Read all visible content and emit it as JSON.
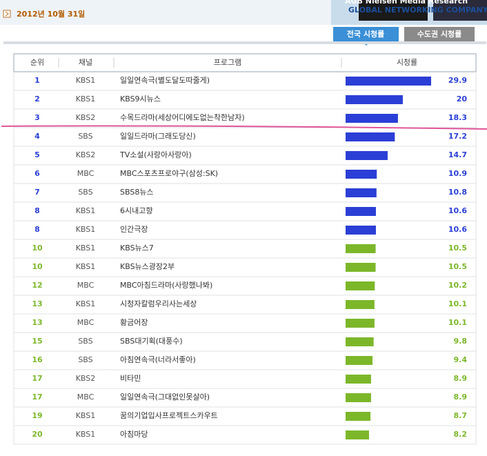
{
  "header": {
    "date": "2012년 10월 31일",
    "brand": "AGB Nielsen Media Research",
    "slogan": "GLOBAL NETWORKING COMPANY"
  },
  "tabs": [
    "전국 시청률",
    "수도권 시청률"
  ],
  "table": {
    "columns": [
      "순위",
      "채널",
      "프로그램",
      "시청률"
    ],
    "rows": [
      {
        "rank": 1,
        "channel": "KBS1",
        "program": "일일연속극(별도달도따줄게)",
        "rating": 29.9,
        "color": "#2b3fd6"
      },
      {
        "rank": 2,
        "channel": "KBS1",
        "program": "KBS9시뉴스",
        "rating": 20,
        "color": "#2b3fd6"
      },
      {
        "rank": 3,
        "channel": "KBS2",
        "program": "수목드라마(세상어디에도없는착한남자)",
        "rating": 18.3,
        "color": "#2b3fd6"
      },
      {
        "rank": 4,
        "channel": "SBS",
        "program": "일일드라마(그래도당신)",
        "rating": 17.2,
        "color": "#2b3fd6"
      },
      {
        "rank": 5,
        "channel": "KBS2",
        "program": "TV소설(사랑아사랑아)",
        "rating": 14.7,
        "color": "#2b3fd6"
      },
      {
        "rank": 6,
        "channel": "MBC",
        "program": "MBC스포츠프로야구(삼성:SK)",
        "rating": 10.9,
        "color": "#2b3fd6"
      },
      {
        "rank": 7,
        "channel": "SBS",
        "program": "SBS8뉴스",
        "rating": 10.8,
        "color": "#2b3fd6"
      },
      {
        "rank": 8,
        "channel": "KBS1",
        "program": "6시내고향",
        "rating": 10.6,
        "color": "#2b3fd6"
      },
      {
        "rank": 8,
        "channel": "KBS1",
        "program": "인간극장",
        "rating": 10.6,
        "color": "#2b3fd6"
      },
      {
        "rank": 10,
        "channel": "KBS1",
        "program": "KBS뉴스7",
        "rating": 10.5,
        "color": "#7cb72a"
      },
      {
        "rank": 10,
        "channel": "KBS1",
        "program": "KBS뉴스광장2부",
        "rating": 10.5,
        "color": "#7cb72a"
      },
      {
        "rank": 12,
        "channel": "MBC",
        "program": "MBC아침드라마(사랑했나봐)",
        "rating": 10.2,
        "color": "#7cb72a"
      },
      {
        "rank": 13,
        "channel": "KBS1",
        "program": "시청자칼럼우리사는세상",
        "rating": 10.1,
        "color": "#7cb72a"
      },
      {
        "rank": 13,
        "channel": "MBC",
        "program": "황금어장",
        "rating": 10.1,
        "color": "#7cb72a"
      },
      {
        "rank": 15,
        "channel": "SBS",
        "program": "SBS대기획(대풍수)",
        "rating": 9.8,
        "color": "#7cb72a"
      },
      {
        "rank": 16,
        "channel": "SBS",
        "program": "아침연속극(너라서좋아)",
        "rating": 9.4,
        "color": "#7cb72a"
      },
      {
        "rank": 17,
        "channel": "KBS2",
        "program": "비타민",
        "rating": 8.9,
        "color": "#7cb72a"
      },
      {
        "rank": 17,
        "channel": "MBC",
        "program": "일일연속극(그대없인못살아)",
        "rating": 8.9,
        "color": "#7cb72a"
      },
      {
        "rank": 19,
        "channel": "KBS1",
        "program": "꿈의기업입사프로젝트스카우트",
        "rating": 8.7,
        "color": "#7cb72a"
      },
      {
        "rank": 20,
        "channel": "KBS1",
        "program": "아침마당",
        "rating": 8.2,
        "color": "#7cb72a"
      }
    ]
  }
}
